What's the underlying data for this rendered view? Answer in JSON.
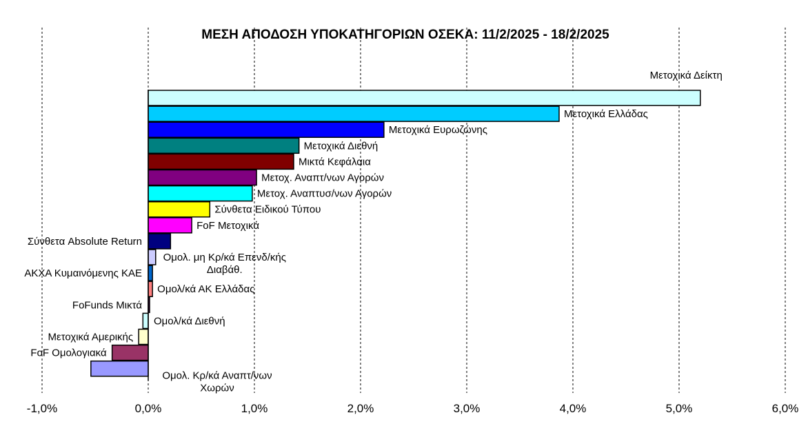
{
  "chart_data": {
    "type": "bar",
    "orientation": "horizontal",
    "title": "ΜΕΣΗ ΑΠΟΔΟΣΗ ΥΠΟΚΑΤΗΓΟΡΙΩΝ ΟΣΕΚΑ: 11/2/2025 - 18/2/2025",
    "xlabel": "",
    "ylabel": "",
    "xlim": [
      -1.0,
      6.0
    ],
    "x_ticks": [
      "-1,0%",
      "0,0%",
      "1,0%",
      "2,0%",
      "3,0%",
      "4,0%",
      "5,0%",
      "6,0%"
    ],
    "grid": "vertical dashed",
    "legend": "none",
    "unit": "%",
    "bars": [
      {
        "label": "Μετοχικά Δείκτη",
        "label_lines": [
          "Μετοχικά Δείκτη"
        ],
        "value": 5.2,
        "color": "#ccffff"
      },
      {
        "label": "Μετοχικά Ελλάδας",
        "label_lines": [
          "Μετοχικά Ελλάδας"
        ],
        "value": 3.87,
        "color": "#00ccff"
      },
      {
        "label": "Μετοχικά Ευρωζώνης",
        "label_lines": [
          "Μετοχικά Ευρωζώνης"
        ],
        "value": 2.22,
        "color": "#0000ff"
      },
      {
        "label": "Μετοχικά Διεθνή",
        "label_lines": [
          "Μετοχικά Διεθνή"
        ],
        "value": 1.42,
        "color": "#008080"
      },
      {
        "label": "Μικτά Κεφάλαια",
        "label_lines": [
          "Μικτά Κεφάλαια"
        ],
        "value": 1.37,
        "color": "#800000"
      },
      {
        "label": "Μετοχ. Αναπτ/νων Αγορών",
        "label_lines": [
          "Μετοχ. Αναπτ/νων Αγορών"
        ],
        "value": 1.02,
        "color": "#800080"
      },
      {
        "label": "Μετοχ. Αναπτυσ/νων Αγορών",
        "label_lines": [
          "Μετοχ. Αναπτυσ/νων Αγορών"
        ],
        "value": 0.98,
        "color": "#00ffff"
      },
      {
        "label": "Σύνθετα Ειδικού Τύπου",
        "label_lines": [
          "Σύνθετα Ειδικού Τύπου"
        ],
        "value": 0.58,
        "color": "#ffff00"
      },
      {
        "label": "FoF Μετοχικά",
        "label_lines": [
          "FoF Μετοχικά"
        ],
        "value": 0.41,
        "color": "#ff00ff"
      },
      {
        "label": "Σύνθετα Absolute Return",
        "label_lines": [
          "Σύνθετα Absolute Return"
        ],
        "value": 0.21,
        "color": "#000080"
      },
      {
        "label": "Ομολ. μη Κρ/κά Επενδ/κής Διαβάθ.",
        "label_lines": [
          "Ομολ. μη Κρ/κά Επενδ/κής",
          "Διαβάθ."
        ],
        "value": 0.07,
        "color": "#ccccff"
      },
      {
        "label": "ΑΚΧΑ Κυμαινόμενης ΚΑΕ",
        "label_lines": [
          "ΑΚΧΑ Κυμαινόμενης ΚΑΕ"
        ],
        "value": 0.04,
        "color": "#0066cc"
      },
      {
        "label": "Ομολ/κά ΑΚ Ελλάδας",
        "label_lines": [
          "Ομολ/κά ΑΚ Ελλάδας"
        ],
        "value": 0.04,
        "color": "#ff8080"
      },
      {
        "label": "FoFunds Μικτά",
        "label_lines": [
          "FoFunds Μικτά"
        ],
        "value": 0.01,
        "color": "#660066"
      },
      {
        "label": "Ομολ/κά Διεθνή",
        "label_lines": [
          "Ομολ/κά Διεθνή"
        ],
        "value": -0.05,
        "color": "#ccffff"
      },
      {
        "label": "Μετοχικά Αμερικής",
        "label_lines": [
          "Μετοχικά Αμερικής"
        ],
        "value": -0.09,
        "color": "#ffffcc"
      },
      {
        "label": "FoF Ομολογιακά",
        "label_lines": [
          "FoF Ομολογιακά"
        ],
        "value": -0.34,
        "color": "#993366"
      },
      {
        "label": "Ομολ. Κρ/κά Αναπτ/νων Χωρών",
        "label_lines": [
          "Ομολ. Κρ/κά Αναπτ/νων",
          "Χωρών"
        ],
        "value": -0.54,
        "color": "#9999ff"
      }
    ]
  }
}
